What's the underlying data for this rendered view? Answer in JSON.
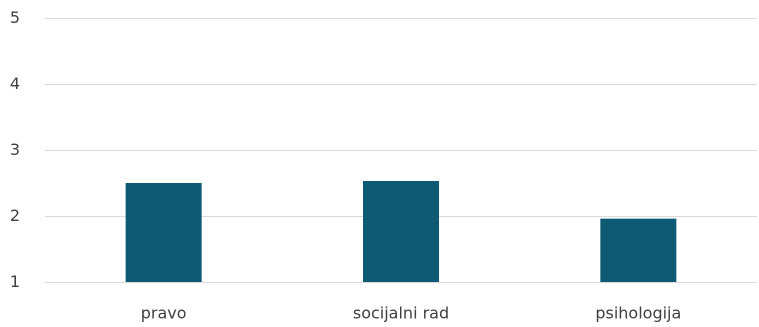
{
  "chart_data": {
    "type": "bar",
    "categories": [
      "pravo",
      "socijalni rad",
      "psihologija"
    ],
    "values": [
      2.5,
      2.53,
      1.96
    ],
    "title": "",
    "xlabel": "",
    "ylabel": "",
    "ylim": [
      1,
      5
    ],
    "yticks": [
      1,
      2,
      3,
      4,
      5
    ],
    "grid": true,
    "bar_color": "#0e5a75",
    "grid_color": "#d9d9d9",
    "text_color": "#404040"
  }
}
